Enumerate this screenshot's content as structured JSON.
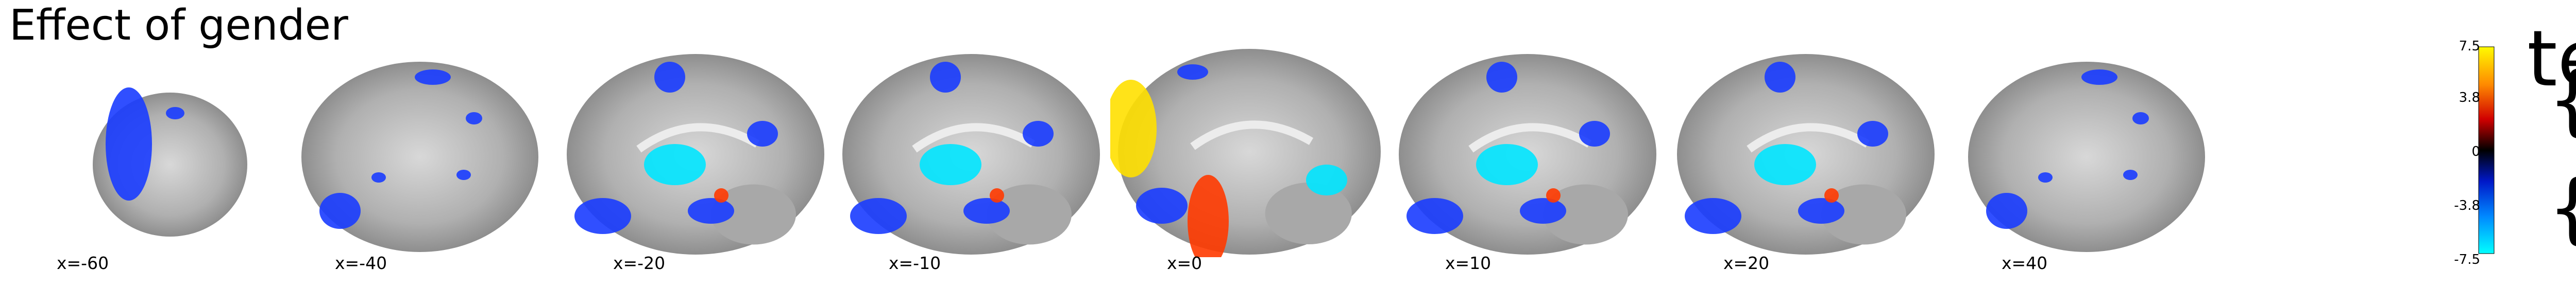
{
  "title": "Effect of gender",
  "side_text": "test",
  "braces": [
    "{",
    "{"
  ],
  "colors": {
    "background": "#ffffff",
    "brain_gray": "#9a9a9a",
    "negative": "#1a3cff",
    "negative_strong": "#00e5ff",
    "positive": "#ff3a00",
    "positive_strong": "#ffe000"
  },
  "slices": [
    {
      "coord_label": "x=-60",
      "shape": 0
    },
    {
      "coord_label": "x=-40",
      "shape": 1
    },
    {
      "coord_label": "x=-20",
      "shape": 2
    },
    {
      "coord_label": "x=-10",
      "shape": 2
    },
    {
      "coord_label": "x=0",
      "shape": 3
    },
    {
      "coord_label": "x=10",
      "shape": 2
    },
    {
      "coord_label": "x=20",
      "shape": 2
    },
    {
      "coord_label": "x=40",
      "shape": 1
    }
  ],
  "colorbar": {
    "ticks": [
      "7.5",
      "3.8",
      "0",
      "-3.8",
      "-7.5"
    ],
    "min": -7.5,
    "max": 7.5
  }
}
